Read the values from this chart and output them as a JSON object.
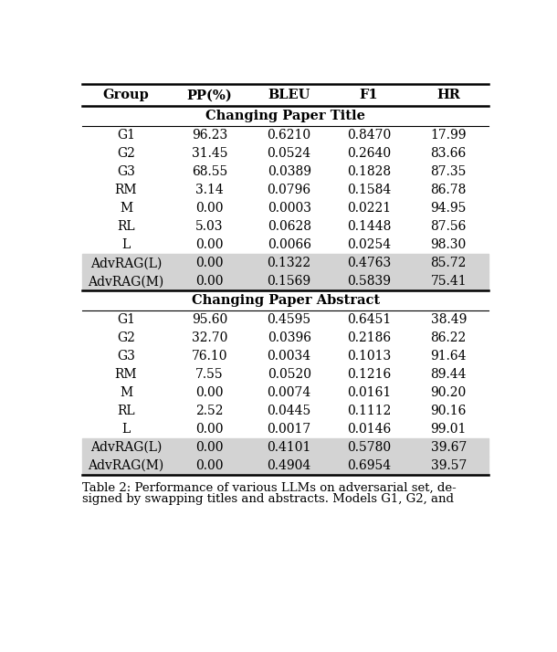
{
  "columns": [
    "Group",
    "PP(%)",
    "BLEU",
    "F1",
    "HR"
  ],
  "section1_title": "Changing Paper Title",
  "section1_rows": [
    [
      "G1",
      "96.23",
      "0.6210",
      "0.8470",
      "17.99"
    ],
    [
      "G2",
      "31.45",
      "0.0524",
      "0.2640",
      "83.66"
    ],
    [
      "G3",
      "68.55",
      "0.0389",
      "0.1828",
      "87.35"
    ],
    [
      "RM",
      "3.14",
      "0.0796",
      "0.1584",
      "86.78"
    ],
    [
      "M",
      "0.00",
      "0.0003",
      "0.0221",
      "94.95"
    ],
    [
      "RL",
      "5.03",
      "0.0628",
      "0.1448",
      "87.56"
    ],
    [
      "L",
      "0.00",
      "0.0066",
      "0.0254",
      "98.30"
    ],
    [
      "AdvRAG(L)",
      "0.00",
      "0.1322",
      "0.4763",
      "85.72"
    ],
    [
      "AdvRAG(M)",
      "0.00",
      "0.1569",
      "0.5839",
      "75.41"
    ]
  ],
  "section1_highlighted": [
    7,
    8
  ],
  "section2_title": "Changing Paper Abstract",
  "section2_rows": [
    [
      "G1",
      "95.60",
      "0.4595",
      "0.6451",
      "38.49"
    ],
    [
      "G2",
      "32.70",
      "0.0396",
      "0.2186",
      "86.22"
    ],
    [
      "G3",
      "76.10",
      "0.0034",
      "0.1013",
      "91.64"
    ],
    [
      "RM",
      "7.55",
      "0.0520",
      "0.1216",
      "89.44"
    ],
    [
      "M",
      "0.00",
      "0.0074",
      "0.0161",
      "90.20"
    ],
    [
      "RL",
      "2.52",
      "0.0445",
      "0.1112",
      "90.16"
    ],
    [
      "L",
      "0.00",
      "0.0017",
      "0.0146",
      "99.01"
    ],
    [
      "AdvRAG(L)",
      "0.00",
      "0.4101",
      "0.5780",
      "39.67"
    ],
    [
      "AdvRAG(M)",
      "0.00",
      "0.4904",
      "0.6954",
      "39.57"
    ]
  ],
  "section2_highlighted": [
    7,
    8
  ],
  "caption_line1": "Table 2: Performance of various LLMs on adversarial set, de-",
  "caption_line2": "signed by swapping titles and abstracts. Models G1, G2, and",
  "highlight_color": "#d3d3d3",
  "background_color": "#ffffff",
  "header_fontsize": 10.5,
  "body_fontsize": 10,
  "caption_fontsize": 9.5,
  "thick_lw": 1.8,
  "thin_lw": 0.8
}
